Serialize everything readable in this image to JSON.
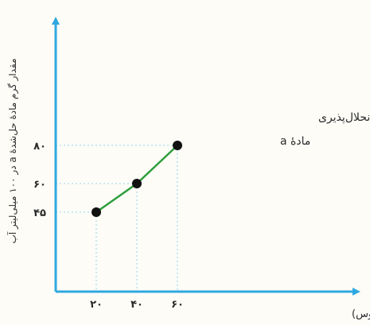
{
  "chart_data": {
    "type": "line",
    "title": "نمودار انحلال‌پذیری ماده a",
    "title_lines": [
      "نمودار انحلال‌پذیری",
      "مادهٔ a"
    ],
    "xlabel": "دما (سلسیوس)",
    "ylabel": "مقدار گرم مادهٔ حل‌شدهٔ a در ۱۰۰ میلی‌لیتر آب",
    "x": [
      20,
      40,
      60
    ],
    "y": [
      45,
      60,
      80
    ],
    "x_tick_labels": [
      "۲۰",
      "۴۰",
      "۶۰"
    ],
    "y_tick_labels": [
      "۴۵",
      "۶۰",
      "۸۰"
    ],
    "xlim": [
      0,
      80
    ],
    "ylim": [
      0,
      110
    ],
    "grid": false,
    "guide_lines": "dotted",
    "colors": {
      "axis": "#2fa8e0",
      "line": "#2e9e3e",
      "point": "#111111",
      "guide": "#8fd3f0"
    }
  }
}
